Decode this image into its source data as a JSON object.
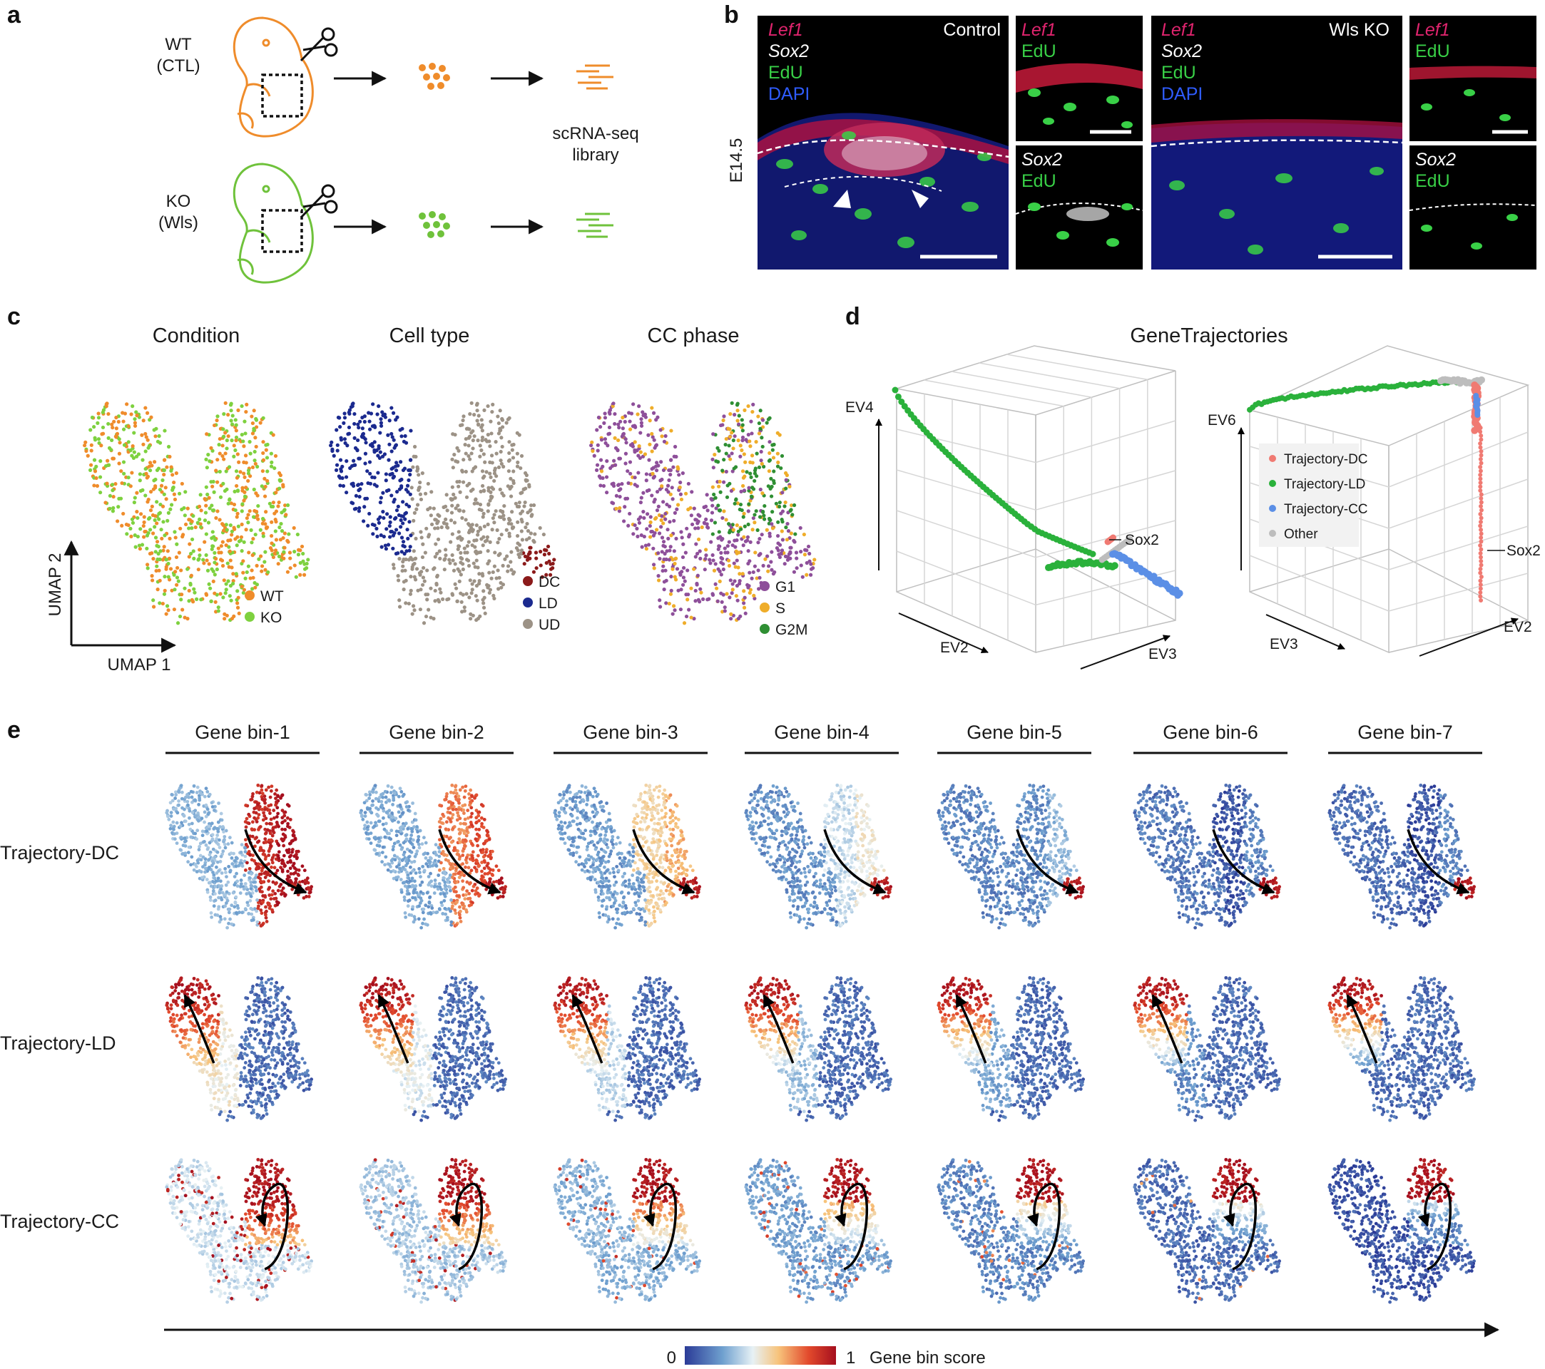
{
  "panels": {
    "a": {
      "label": "a",
      "wt_label_1": "WT",
      "wt_label_2": "(CTL)",
      "ko_label_1": "KO",
      "ko_label_2": "(Wls)",
      "library_1": "scRNA-seq",
      "library_2": "library",
      "colors": {
        "wt": "#ef8c2b",
        "ko": "#6fc23b"
      }
    },
    "b": {
      "label": "b",
      "age": "E14.5",
      "control": "Control",
      "ko": "Wls KO",
      "stains": {
        "lef1": "Lef1",
        "sox2": "Sox2",
        "edu": "EdU",
        "dapi": "DAPI"
      },
      "colors": {
        "lef1": "#e0246e",
        "sox2": "#ffffff",
        "edu": "#39d047",
        "dapi": "#2f5cff"
      }
    },
    "c": {
      "label": "c",
      "titles": [
        "Condition",
        "Cell type",
        "CC phase"
      ],
      "axis_x": "UMAP 1",
      "axis_y": "UMAP 2",
      "legends": [
        [
          {
            "name": "WT",
            "color": "#ef8c2b"
          },
          {
            "name": "KO",
            "color": "#7ed13f"
          }
        ],
        [
          {
            "name": "DC",
            "color": "#8b1a1a"
          },
          {
            "name": "LD",
            "color": "#1b2a8f"
          },
          {
            "name": "UD",
            "color": "#9c9286"
          }
        ],
        [
          {
            "name": "G1",
            "color": "#8e4f9a"
          },
          {
            "name": "S",
            "color": "#efad2a"
          },
          {
            "name": "G2M",
            "color": "#2f8f33"
          }
        ]
      ]
    },
    "d": {
      "label": "d",
      "title": "GeneTrajectories",
      "left_axes": {
        "vertical": "EV4",
        "front_left": "EV2",
        "front_right": "EV3"
      },
      "right_axes": {
        "vertical": "EV6",
        "front_left": "EV3",
        "front_right": "EV2"
      },
      "annotation": "Sox2",
      "legend": [
        {
          "name": "Trajectory-DC",
          "color": "#f07a72"
        },
        {
          "name": "Trajectory-LD",
          "color": "#2ab13b"
        },
        {
          "name": "Trajectory-CC",
          "color": "#5b8fe6"
        },
        {
          "name": "Other",
          "color": "#bdbdbd"
        }
      ]
    },
    "e": {
      "label": "e",
      "bins": [
        "Gene bin-1",
        "Gene bin-2",
        "Gene bin-3",
        "Gene bin-4",
        "Gene bin-5",
        "Gene bin-6",
        "Gene bin-7"
      ],
      "rows": [
        "Trajectory-DC",
        "Trajectory-LD",
        "Trajectory-CC"
      ],
      "colorbar": {
        "min": "0",
        "max": "1",
        "label": "Gene bin score",
        "colors": [
          "#2b3b97",
          "#6fa0cf",
          "#e7f1f5",
          "#f7c37b",
          "#e2492c",
          "#a50f1e"
        ]
      }
    }
  }
}
